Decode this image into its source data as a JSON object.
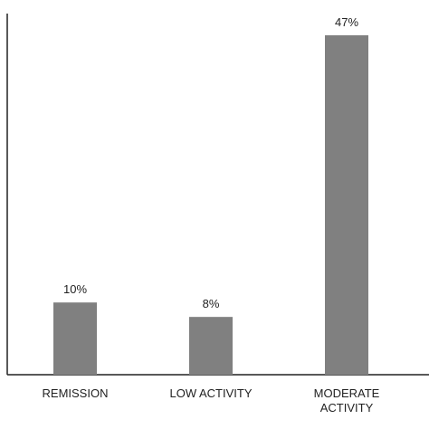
{
  "chart_data": {
    "type": "bar",
    "categories": [
      "REMISSION",
      "LOW ACTIVITY",
      "MODERATE ACTIVITY"
    ],
    "values": [
      10,
      8,
      47
    ],
    "value_labels": [
      "10%",
      "8%",
      "47%"
    ],
    "color": "#808080",
    "ylim": [
      0,
      50
    ]
  }
}
